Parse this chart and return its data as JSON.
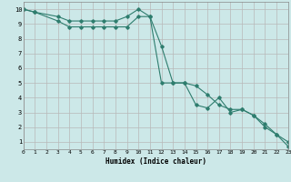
{
  "xlabel": "Humidex (Indice chaleur)",
  "bg_color": "#cce8e8",
  "grid_color": "#b8b8b8",
  "line_color": "#2e7d6e",
  "series1_x": [
    0,
    1,
    3,
    4,
    5,
    6,
    7,
    8,
    9,
    10,
    11,
    12,
    13,
    14,
    15,
    16,
    17,
    18,
    19,
    20,
    21,
    22,
    23
  ],
  "series1_y": [
    10,
    9.8,
    9.5,
    9.2,
    9.2,
    9.2,
    9.2,
    9.2,
    9.5,
    10,
    9.5,
    7.5,
    5,
    5,
    4.8,
    4.2,
    3.5,
    3.2,
    3.2,
    2.8,
    2.2,
    1.5,
    1.0
  ],
  "series2_x": [
    0,
    1,
    3,
    4,
    5,
    6,
    7,
    8,
    9,
    10,
    11,
    12,
    13,
    14,
    15,
    16,
    17,
    18,
    19,
    20,
    21,
    22,
    23
  ],
  "series2_y": [
    10,
    9.8,
    9.2,
    8.8,
    8.8,
    8.8,
    8.8,
    8.8,
    8.8,
    9.5,
    9.5,
    5.0,
    5.0,
    5.0,
    3.5,
    3.3,
    4.0,
    3.0,
    3.2,
    2.8,
    2.0,
    1.5,
    0.7
  ],
  "xlim": [
    0,
    23
  ],
  "ylim": [
    0.5,
    10.5
  ],
  "yticks": [
    1,
    2,
    3,
    4,
    5,
    6,
    7,
    8,
    9,
    10
  ],
  "xticks": [
    0,
    1,
    2,
    3,
    4,
    5,
    6,
    7,
    8,
    9,
    10,
    11,
    12,
    13,
    14,
    15,
    16,
    17,
    18,
    19,
    20,
    21,
    22,
    23
  ]
}
